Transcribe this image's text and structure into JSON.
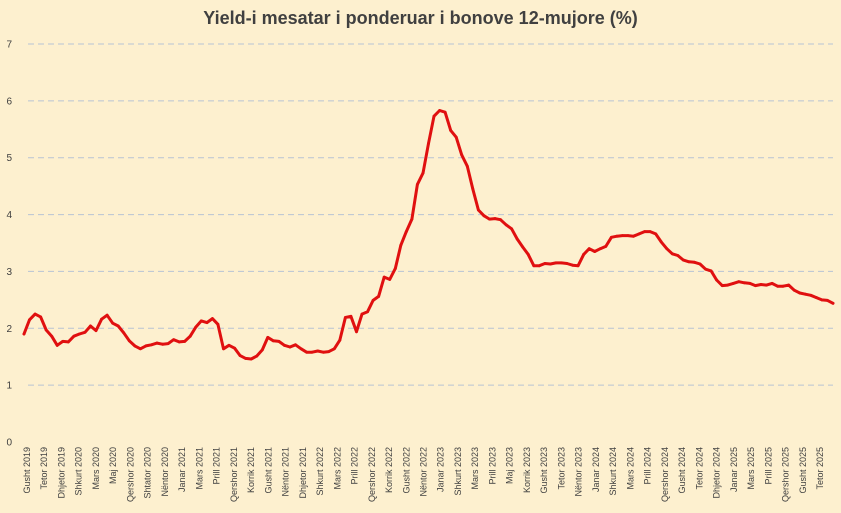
{
  "chart_data": {
    "type": "line",
    "title": "Yield-i mesatar i ponderuar i bonove 12-mujore (%)",
    "xlabel": "",
    "ylabel": "",
    "ylim": [
      0,
      7
    ],
    "yticks": [
      0,
      1,
      2,
      3,
      4,
      5,
      6,
      7
    ],
    "grid": true,
    "legend": "none",
    "line_color": "#e01010",
    "x_tick_labels": [
      "Gusht 2019",
      "Tetor 2019",
      "Dhjetor 2019",
      "Shkurt 2020",
      "Mars 2020",
      "Maj 2020",
      "Qershor 2020",
      "Shtator 2020",
      "Nëntor 2020",
      "Janar 2021",
      "Mars 2021",
      "Prill 2021",
      "Qershor 2021",
      "Korrik 2021",
      "Gusht 2021",
      "Nëntor 2021",
      "Dhjetor 2021",
      "Shkurt 2022",
      "Mars 2022",
      "Prill 2022",
      "Qershor 2022",
      "Korrik 2022",
      "Gusht 2022",
      "Nëntor 2022",
      "Janar 2023",
      "Shkurt 2023",
      "Mars 2023",
      "Prill 2023",
      "Maj 2023",
      "Korrik 2023",
      "Gusht 2023",
      "Tetor 2023",
      "Nëntor 2023",
      "Janar 2024",
      "Shkurt 2024",
      "Mars 2024",
      "Prill 2024",
      "Qershor 2024",
      "Gusht 2024",
      "Tetor 2024",
      "Dhjetor 2024",
      "Janar 2025",
      "Mars 2025",
      "Prill 2025",
      "Qershor 2025",
      "Gusht 2025",
      "Tetor 2025"
    ],
    "series": [
      {
        "values": [
          1.9,
          2.15,
          2.25,
          2.2,
          1.97,
          1.86,
          1.7,
          1.77,
          1.76,
          1.86,
          1.9,
          1.93,
          2.04,
          1.96,
          2.16,
          2.23,
          2.09,
          2.04,
          1.92,
          1.78,
          1.69,
          1.64,
          1.69,
          1.71,
          1.74,
          1.72,
          1.73,
          1.8,
          1.76,
          1.77,
          1.86,
          2.02,
          2.13,
          2.1,
          2.17,
          2.07,
          1.64,
          1.7,
          1.65,
          1.52,
          1.47,
          1.46,
          1.51,
          1.62,
          1.84,
          1.78,
          1.77,
          1.7,
          1.67,
          1.71,
          1.64,
          1.58,
          1.58,
          1.6,
          1.58,
          1.59,
          1.64,
          1.79,
          2.19,
          2.21,
          1.94,
          2.25,
          2.29,
          2.49,
          2.56,
          2.9,
          2.86,
          3.05,
          3.46,
          3.7,
          3.92,
          4.53,
          4.73,
          5.25,
          5.73,
          5.83,
          5.8,
          5.48,
          5.36,
          5.05,
          4.85,
          4.45,
          4.08,
          3.98,
          3.92,
          3.93,
          3.91,
          3.82,
          3.75,
          3.57,
          3.43,
          3.3,
          3.1,
          3.1,
          3.14,
          3.13,
          3.15,
          3.15,
          3.14,
          3.11,
          3.1,
          3.3,
          3.4,
          3.35,
          3.4,
          3.44,
          3.6,
          3.62,
          3.63,
          3.63,
          3.62,
          3.66,
          3.7,
          3.7,
          3.66,
          3.52,
          3.4,
          3.31,
          3.28,
          3.2,
          3.17,
          3.16,
          3.13,
          3.04,
          3.01,
          2.85,
          2.75,
          2.76,
          2.79,
          2.82,
          2.8,
          2.79,
          2.75,
          2.77,
          2.76,
          2.79,
          2.74,
          2.74,
          2.76,
          2.67,
          2.62,
          2.6,
          2.58,
          2.54,
          2.5,
          2.49,
          2.44
        ]
      }
    ]
  }
}
